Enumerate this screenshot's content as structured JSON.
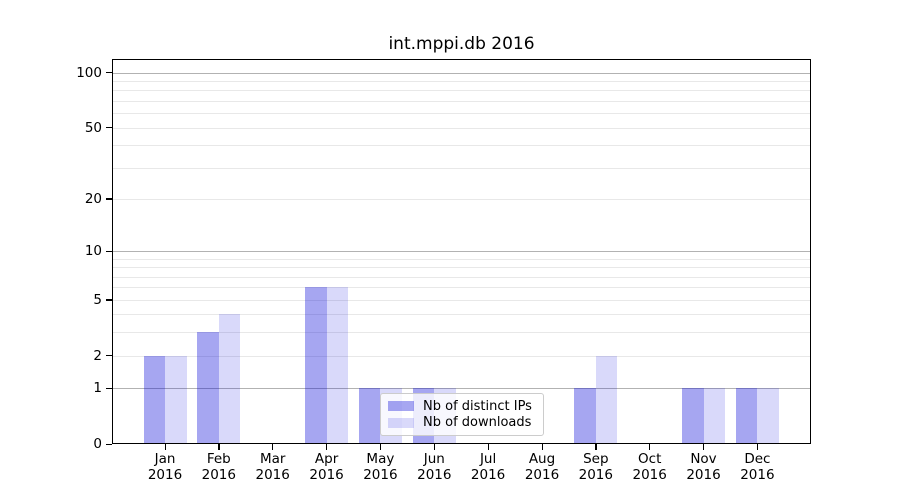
{
  "chart_data": {
    "type": "bar",
    "title": "int.mppi.db 2016",
    "categories": [
      "Jan",
      "Feb",
      "Mar",
      "Apr",
      "May",
      "Jun",
      "Jul",
      "Aug",
      "Sep",
      "Oct",
      "Nov",
      "Dec"
    ],
    "category_year": "2016",
    "series": [
      {
        "name": "Nb of distinct IPs",
        "color": "rgba(0,0,215,0.35)",
        "values": [
          2,
          3,
          0,
          6,
          1,
          1,
          0,
          0,
          1,
          0,
          1,
          1
        ]
      },
      {
        "name": "Nb of downloads",
        "color": "rgba(0,0,220,0.15)",
        "values": [
          2,
          4,
          0,
          6,
          1,
          1,
          0,
          0,
          2,
          0,
          1,
          1
        ]
      }
    ],
    "yscale": "log1p",
    "ylim": [
      0,
      120
    ],
    "y_ticks": [
      0,
      1,
      2,
      5,
      10,
      20,
      50,
      100
    ],
    "grid_major": [
      1,
      10,
      100
    ],
    "grid_minor": [
      2,
      3,
      4,
      5,
      6,
      7,
      8,
      9,
      20,
      30,
      40,
      50,
      60,
      70,
      80,
      90
    ],
    "legend": {
      "position": "inside-lower-center"
    },
    "colors": {
      "grid_major": "#b2b2b2",
      "grid_minor": "#e8e8e8",
      "axis": "#000000",
      "background": "#ffffff",
      "legend_border": "#cccccc"
    }
  }
}
